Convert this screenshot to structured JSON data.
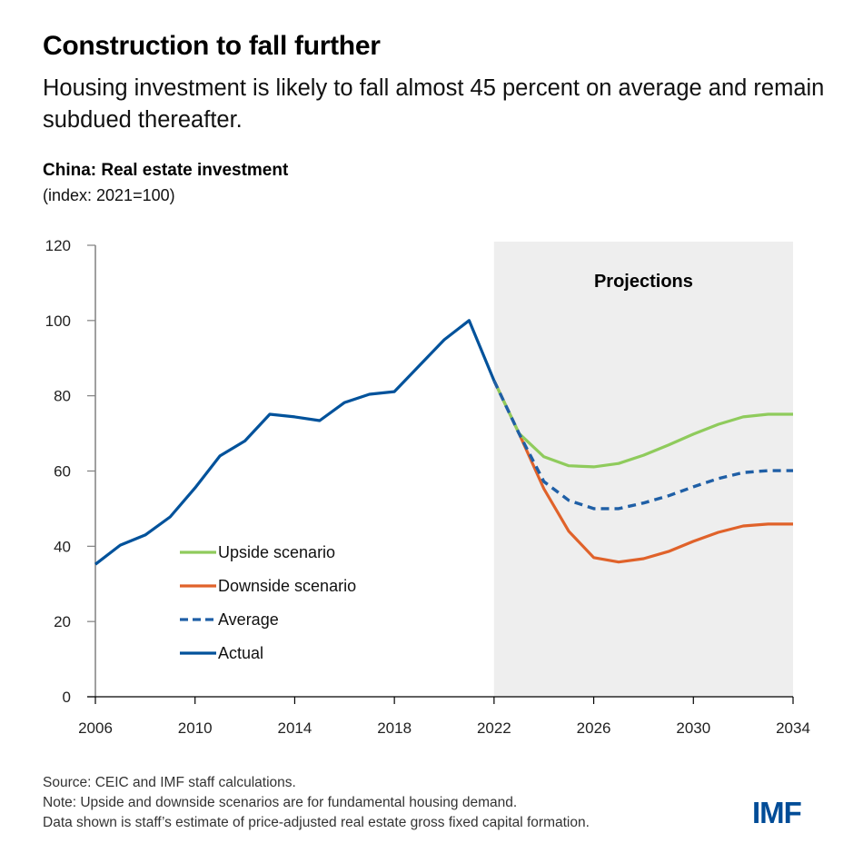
{
  "header": {
    "title": "Construction to fall further",
    "subtitle": "Housing investment is likely to fall almost 45 percent on average and remain subdued thereafter."
  },
  "chart_header": {
    "title": "China: Real estate investment",
    "units": "(index: 2021=100)"
  },
  "footnotes": {
    "source": "Source: CEIC and IMF staff calculations.",
    "note": "Note: Upside and downside scenarios are for fundamental housing demand.",
    "data_note": "Data shown is staff’s estimate of price-adjusted real estate gross fixed capital formation."
  },
  "logo": "IMF",
  "colors": {
    "actual": "#00529B",
    "average": "#1F5FA6",
    "upside": "#8FCB5C",
    "downside": "#E0622A",
    "projection_shade": "#EEEEEE",
    "logo": "#004C97"
  },
  "chart_data": {
    "type": "line",
    "title": "China: Real estate investment",
    "ylabel": "(index: 2021=100)",
    "xlabel": "",
    "xlim": [
      2006,
      2034
    ],
    "ylim": [
      0,
      120
    ],
    "x_ticks": [
      2006,
      2010,
      2014,
      2018,
      2022,
      2026,
      2030,
      2034
    ],
    "y_ticks": [
      0,
      20,
      40,
      60,
      80,
      100,
      120
    ],
    "grid": false,
    "shaded_region": {
      "label": "Projections",
      "from": 2022,
      "to": 2034
    },
    "legend_position": "lower-left",
    "series": [
      {
        "name": "Upside scenario",
        "color": "#8FCB5C",
        "style": "solid",
        "x": [
          2022,
          2023,
          2024,
          2025,
          2026,
          2027,
          2028,
          2029,
          2030,
          2031,
          2032,
          2033,
          2034
        ],
        "values": [
          84,
          70,
          63.8,
          61.4,
          61.1,
          62,
          64.2,
          66.9,
          69.8,
          72.4,
          74.4,
          75.1,
          75.1
        ]
      },
      {
        "name": "Downside scenario",
        "color": "#E0622A",
        "style": "solid",
        "x": [
          2022,
          2023,
          2024,
          2025,
          2026,
          2027,
          2028,
          2029,
          2030,
          2031,
          2032,
          2033,
          2034
        ],
        "values": [
          84,
          70,
          55.3,
          44,
          37,
          35.8,
          36.7,
          38.6,
          41.3,
          43.7,
          45.4,
          45.9,
          45.9
        ]
      },
      {
        "name": "Average",
        "color": "#1F5FA6",
        "style": "dashed",
        "x": [
          2022,
          2023,
          2024,
          2025,
          2026,
          2027,
          2028,
          2029,
          2030,
          2031,
          2032,
          2033,
          2034
        ],
        "values": [
          84,
          70,
          57.2,
          52.2,
          50,
          50,
          51.5,
          53.4,
          55.8,
          58,
          59.6,
          60.1,
          60.1
        ]
      },
      {
        "name": "Actual",
        "color": "#00529B",
        "style": "solid",
        "x": [
          2006,
          2007,
          2008,
          2009,
          2010,
          2011,
          2012,
          2013,
          2014,
          2015,
          2016,
          2017,
          2018,
          2019,
          2020,
          2021,
          2022
        ],
        "values": [
          35.2,
          40.3,
          43,
          47.8,
          55.5,
          64,
          68,
          75.1,
          74.4,
          73.4,
          78.2,
          80.4,
          81.1,
          88,
          94.9,
          100,
          84
        ]
      }
    ],
    "legend": [
      "Upside scenario",
      "Downside scenario",
      "Average",
      "Actual"
    ]
  }
}
